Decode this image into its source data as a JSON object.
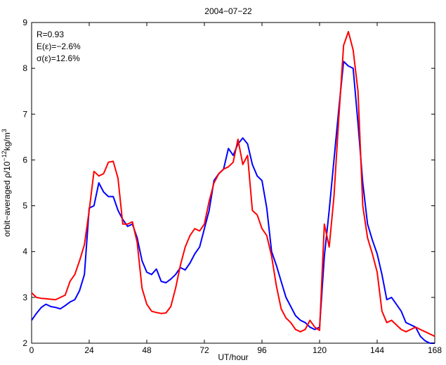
{
  "chart_data": {
    "type": "line",
    "title": "2004−07−22",
    "xlabel": "UT/hour",
    "ylabel_parts": [
      "orbit−averaged ρ/10",
      "−12",
      "kg/m",
      "3"
    ],
    "xlim": [
      0,
      168
    ],
    "ylim": [
      2,
      9
    ],
    "xticks": [
      0,
      24,
      48,
      72,
      96,
      120,
      144,
      168
    ],
    "yticks": [
      2,
      3,
      4,
      5,
      6,
      7,
      8,
      9
    ],
    "grid": false,
    "annotations": [
      "R=0.93",
      "E(ε)=−2.6%",
      "σ(ε)=12.6%"
    ],
    "series": [
      {
        "color": "#0000ff",
        "x": [
          0,
          2,
          4,
          6,
          8,
          10,
          12,
          14,
          16,
          18,
          20,
          22,
          24,
          26,
          28,
          30,
          32,
          34,
          36,
          38,
          40,
          42,
          44,
          46,
          48,
          50,
          52,
          54,
          56,
          58,
          60,
          62,
          64,
          66,
          68,
          70,
          72,
          74,
          76,
          78,
          80,
          82,
          84,
          86,
          88,
          90,
          92,
          94,
          96,
          98,
          100,
          102,
          104,
          106,
          108,
          110,
          112,
          114,
          116,
          118,
          120,
          122,
          124,
          126,
          128,
          130,
          132,
          134,
          136,
          138,
          140,
          142,
          144,
          146,
          148,
          150,
          152,
          154,
          156,
          158,
          160,
          162,
          164,
          166,
          168
        ],
        "values": [
          2.5,
          2.65,
          2.78,
          2.85,
          2.8,
          2.78,
          2.75,
          2.82,
          2.9,
          2.95,
          3.15,
          3.5,
          4.95,
          5.0,
          5.5,
          5.3,
          5.2,
          5.2,
          4.9,
          4.7,
          4.55,
          4.6,
          4.3,
          3.8,
          3.55,
          3.5,
          3.62,
          3.35,
          3.32,
          3.4,
          3.5,
          3.65,
          3.6,
          3.75,
          3.95,
          4.1,
          4.5,
          4.9,
          5.55,
          5.7,
          5.8,
          6.25,
          6.1,
          6.35,
          6.48,
          6.35,
          5.9,
          5.65,
          5.55,
          4.95,
          4.0,
          3.7,
          3.35,
          3.0,
          2.8,
          2.6,
          2.5,
          2.45,
          2.35,
          2.3,
          2.35,
          3.9,
          4.9,
          6.0,
          7.1,
          8.15,
          8.05,
          8.0,
          6.8,
          5.5,
          4.6,
          4.25,
          3.95,
          3.5,
          2.95,
          3.0,
          2.85,
          2.7,
          2.45,
          2.4,
          2.35,
          2.15,
          2.05,
          2.0,
          2.0
        ]
      },
      {
        "color": "#ff0000",
        "x": [
          0,
          2,
          4,
          6,
          8,
          10,
          12,
          14,
          16,
          18,
          20,
          22,
          24,
          26,
          28,
          30,
          32,
          34,
          36,
          38,
          40,
          42,
          44,
          46,
          48,
          50,
          52,
          54,
          56,
          58,
          60,
          62,
          64,
          66,
          68,
          70,
          72,
          74,
          76,
          78,
          80,
          82,
          84,
          86,
          88,
          90,
          92,
          94,
          96,
          98,
          100,
          102,
          104,
          106,
          108,
          110,
          112,
          114,
          116,
          118,
          120,
          122,
          124,
          126,
          128,
          130,
          132,
          134,
          136,
          138,
          140,
          142,
          144,
          146,
          148,
          150,
          152,
          154,
          156,
          158,
          160,
          162,
          164,
          166,
          168
        ],
        "values": [
          3.1,
          3.0,
          2.98,
          2.97,
          2.96,
          2.95,
          3.0,
          3.05,
          3.35,
          3.5,
          3.8,
          4.15,
          4.9,
          5.75,
          5.65,
          5.7,
          5.95,
          5.97,
          5.6,
          4.6,
          4.6,
          4.65,
          4.2,
          3.2,
          2.85,
          2.7,
          2.67,
          2.65,
          2.66,
          2.8,
          3.2,
          3.7,
          4.1,
          4.35,
          4.5,
          4.45,
          4.6,
          5.1,
          5.5,
          5.7,
          5.8,
          5.85,
          5.95,
          6.45,
          5.9,
          6.1,
          4.9,
          4.8,
          4.5,
          4.35,
          3.9,
          3.25,
          2.75,
          2.55,
          2.45,
          2.3,
          2.25,
          2.3,
          2.5,
          2.35,
          2.28,
          4.6,
          4.1,
          5.2,
          6.9,
          8.5,
          8.8,
          8.4,
          7.5,
          5.0,
          4.3,
          3.95,
          3.55,
          2.7,
          2.45,
          2.5,
          2.4,
          2.3,
          2.25,
          2.3,
          2.35,
          2.3,
          2.25,
          2.2,
          2.15
        ]
      }
    ]
  }
}
